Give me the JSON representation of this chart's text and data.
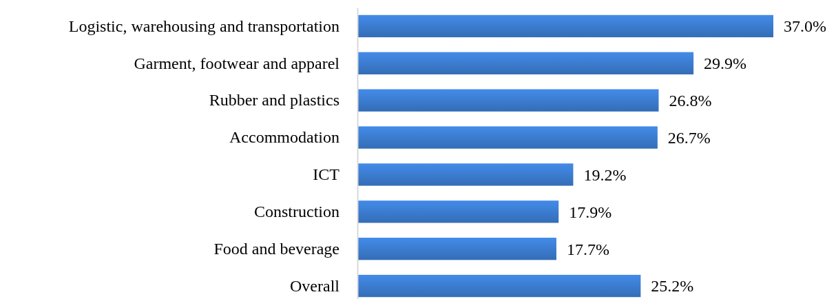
{
  "chart_data": {
    "type": "bar",
    "orientation": "horizontal",
    "categories": [
      "Logistic, warehousing and transportation",
      "Garment, footwear and apparel",
      "Rubber and plastics",
      "Accommodation",
      "ICT",
      "Construction",
      "Food and beverage",
      "Overall"
    ],
    "values": [
      37.0,
      29.9,
      26.8,
      26.7,
      19.2,
      17.9,
      17.7,
      25.2
    ],
    "value_labels": [
      "37.0%",
      "29.9%",
      "26.8%",
      "26.7%",
      "19.2%",
      "17.9%",
      "17.7%",
      "25.2%"
    ],
    "color": "#3b7bce"
  }
}
